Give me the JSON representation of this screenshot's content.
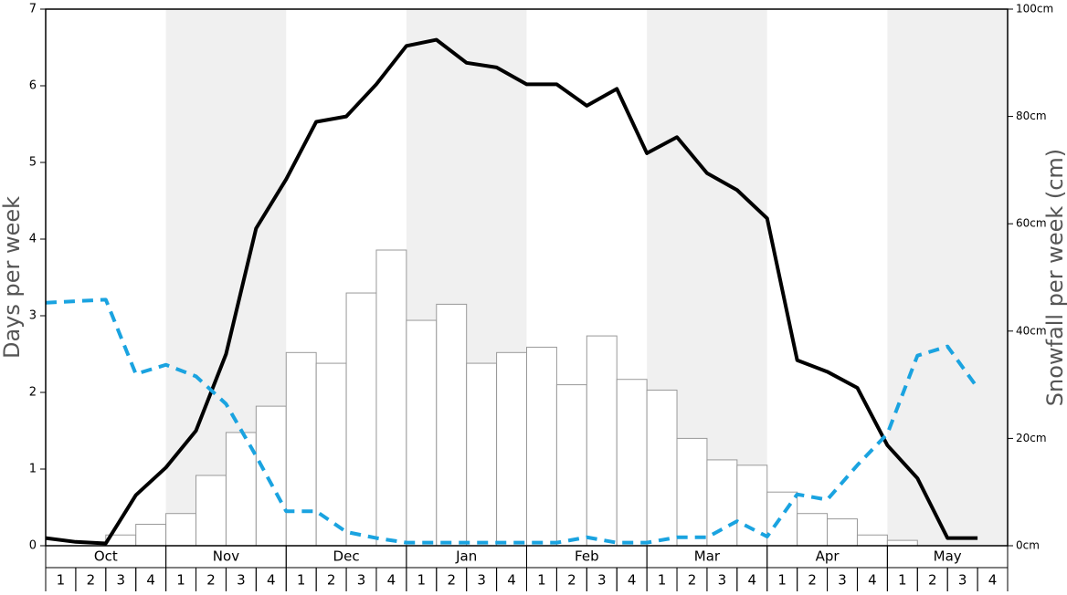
{
  "chart_data": {
    "type": "bar-line",
    "ylabel": "Days per week",
    "y2label": "Snowfall per week (cm)",
    "months": [
      "Oct",
      "Nov",
      "Dec",
      "Jan",
      "Feb",
      "Mar",
      "Apr",
      "May"
    ],
    "categories": [
      "1",
      "2",
      "3",
      "4",
      "1",
      "2",
      "3",
      "4",
      "1",
      "2",
      "3",
      "4",
      "1",
      "2",
      "3",
      "4",
      "1",
      "2",
      "3",
      "4",
      "1",
      "2",
      "3",
      "4",
      "1",
      "2",
      "3",
      "4",
      "1",
      "2",
      "3",
      "4"
    ],
    "ylim": [
      0,
      7
    ],
    "yticks": [
      0,
      1,
      2,
      3,
      4,
      5,
      6,
      7
    ],
    "y2lim": [
      0,
      100
    ],
    "y2ticks": [
      {
        "value": 0,
        "label": "0cm"
      },
      {
        "value": 20,
        "label": "20cm"
      },
      {
        "value": 40,
        "label": "40cm"
      },
      {
        "value": 60,
        "label": "60cm"
      },
      {
        "value": 80,
        "label": "80cm"
      },
      {
        "value": 100,
        "label": "100cm"
      }
    ],
    "series": [
      {
        "kind": "bar",
        "axis": "y2",
        "color": "#ffffff",
        "values": [
          0,
          0,
          2,
          4,
          6,
          13.1,
          21.1,
          26,
          36,
          34,
          47.1,
          55.1,
          42,
          45,
          34,
          36,
          37,
          30,
          39.1,
          31,
          29,
          20,
          16,
          15,
          10,
          6,
          5,
          2,
          1,
          0,
          0,
          0
        ]
      },
      {
        "kind": "line",
        "color": "#000000",
        "values": [
          0.1,
          0.05,
          0.03,
          0.66,
          1.02,
          1.5,
          2.5,
          4.14,
          4.78,
          5.53,
          5.6,
          6.02,
          6.52,
          6.6,
          6.3,
          6.24,
          6.02,
          6.02,
          5.74,
          5.96,
          5.12,
          5.33,
          4.86,
          4.64,
          4.27,
          2.42,
          2.27,
          2.06,
          1.31,
          0.88,
          0.1,
          0.1
        ]
      },
      {
        "kind": "dashed",
        "color": "#1aa3e0",
        "values": [
          3.17,
          3.19,
          3.21,
          2.24,
          2.36,
          2.21,
          1.85,
          1.17,
          0.45,
          0.45,
          0.18,
          0.1,
          0.04,
          0.04,
          0.04,
          0.04,
          0.04,
          0.04,
          0.11,
          0.04,
          0.04,
          0.11,
          0.11,
          0.32,
          0.12,
          0.67,
          0.6,
          1.05,
          1.46,
          2.48,
          2.6,
          2.06
        ]
      }
    ]
  }
}
